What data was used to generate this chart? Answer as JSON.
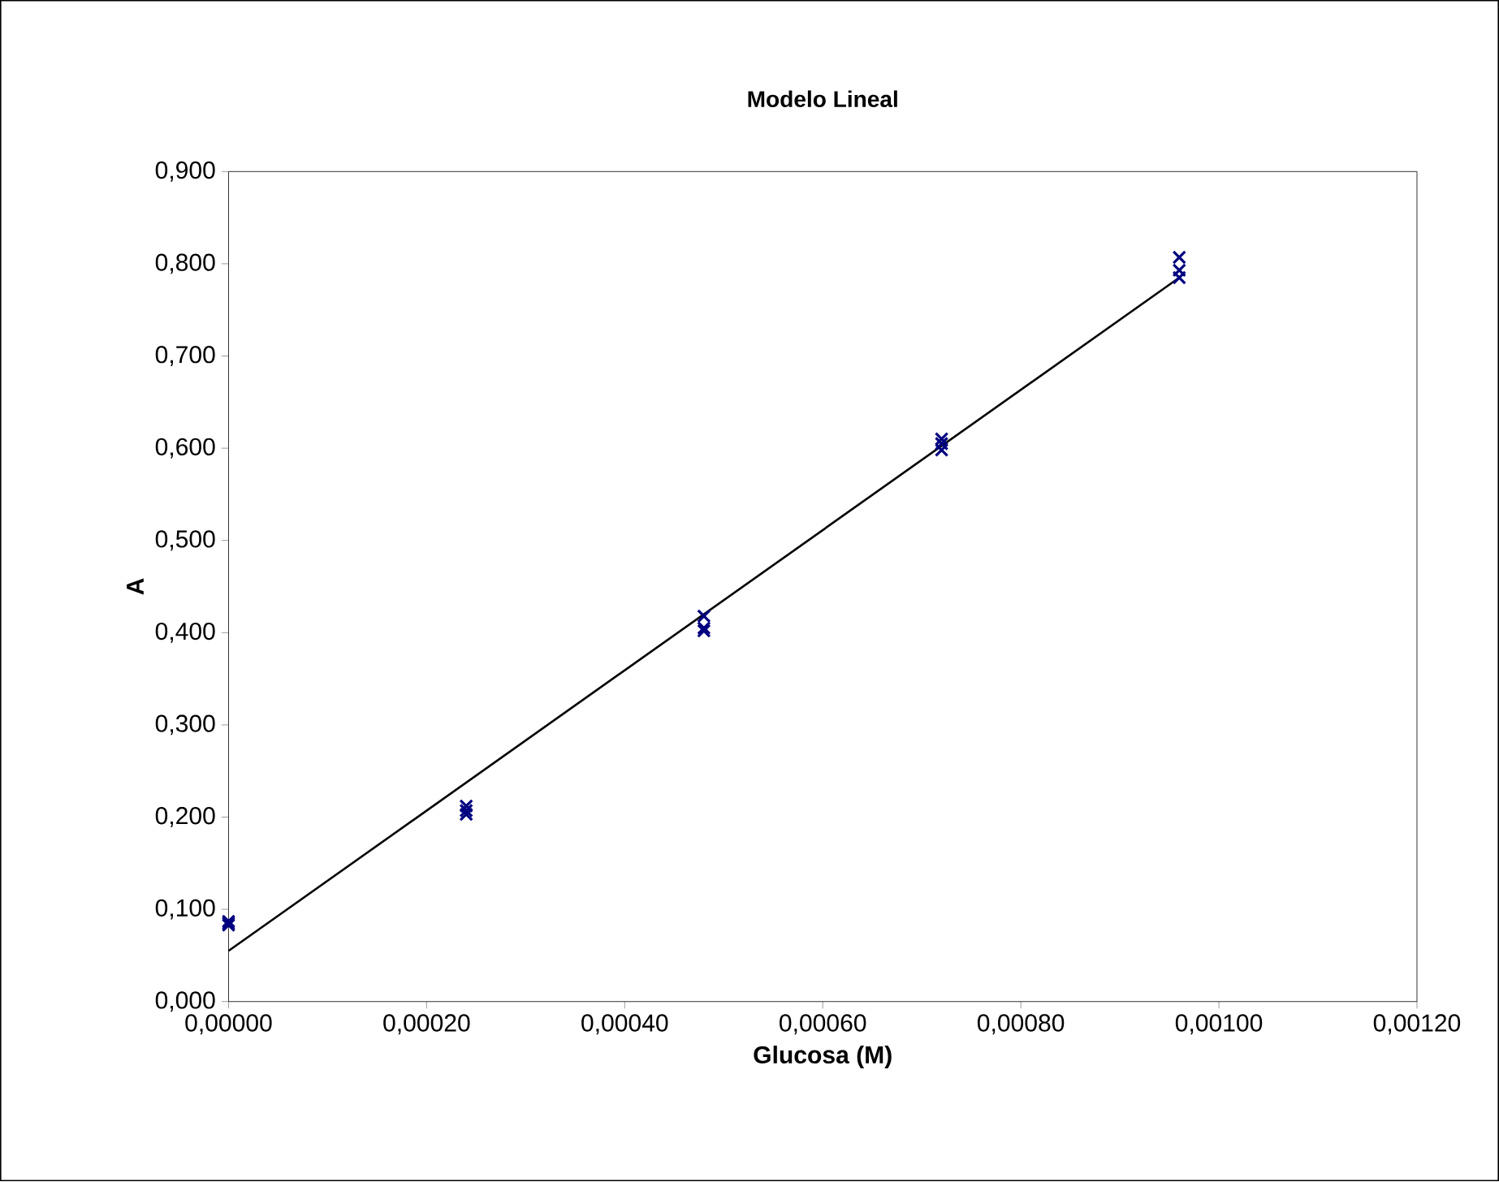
{
  "chart_data": {
    "type": "scatter",
    "title": "Modelo Lineal",
    "xlabel": "Glucosa  (M)",
    "ylabel": "A",
    "xlim": [
      0,
      0.0012
    ],
    "ylim": [
      0,
      0.9
    ],
    "xticks": [
      {
        "value": 0,
        "label": "0,00000"
      },
      {
        "value": 0.0002,
        "label": "0,00020"
      },
      {
        "value": 0.0004,
        "label": "0,00040"
      },
      {
        "value": 0.0006,
        "label": "0,00060"
      },
      {
        "value": 0.0008,
        "label": "0,00080"
      },
      {
        "value": 0.001,
        "label": "0,00100"
      },
      {
        "value": 0.0012,
        "label": "0,00120"
      }
    ],
    "yticks": [
      {
        "value": 0,
        "label": "0,000"
      },
      {
        "value": 0.1,
        "label": "0,100"
      },
      {
        "value": 0.2,
        "label": "0,200"
      },
      {
        "value": 0.3,
        "label": "0,300"
      },
      {
        "value": 0.4,
        "label": "0,400"
      },
      {
        "value": 0.5,
        "label": "0,500"
      },
      {
        "value": 0.6,
        "label": "0,600"
      },
      {
        "value": 0.7,
        "label": "0,700"
      },
      {
        "value": 0.8,
        "label": "0,800"
      },
      {
        "value": 0.9,
        "label": "0,900"
      }
    ],
    "grid": false,
    "series": [
      {
        "marker": "cross",
        "color": "#000080",
        "x": [
          0,
          0,
          0,
          0.00024,
          0.00024,
          0.00024,
          0.00048,
          0.00048,
          0.00048,
          0.00072,
          0.00072,
          0.00072,
          0.00096,
          0.00096,
          0.00096
        ],
        "values": [
          0.083,
          0.085,
          0.087,
          0.203,
          0.207,
          0.212,
          0.402,
          0.405,
          0.418,
          0.598,
          0.605,
          0.61,
          0.785,
          0.793,
          0.807
        ]
      },
      {
        "type": "line",
        "marker": "none",
        "color": "#000000",
        "x": [
          0,
          0.00096
        ],
        "values": [
          0.055,
          0.785
        ]
      }
    ]
  }
}
